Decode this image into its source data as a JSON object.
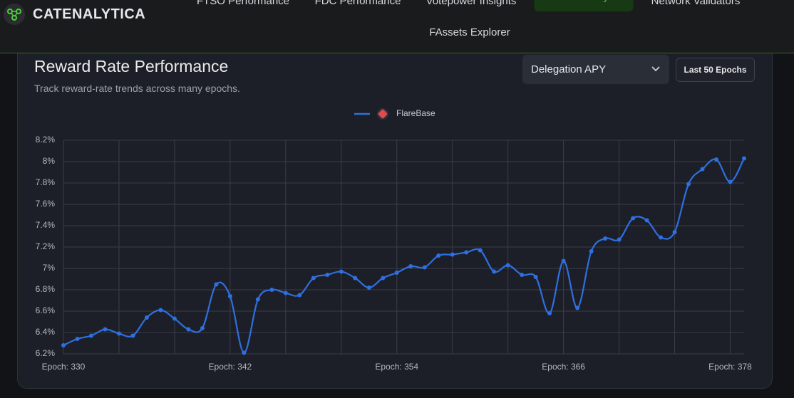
{
  "header": {
    "brand": "CATENALYTICA",
    "nav": [
      "FTSO Performance",
      "FDC Performance",
      "Votepower Insights",
      "Reward Analytics",
      "Network Validators",
      "FAssets Explorer"
    ],
    "active": "Reward Analytics"
  },
  "card": {
    "title": "Reward Rate Performance",
    "subtitle": "Track reward-rate trends across many epochs.",
    "metric": "Delegation APY",
    "range": "Last 50 Epochs"
  },
  "chart_data": {
    "type": "line",
    "x": [
      330,
      331,
      332,
      333,
      334,
      335,
      336,
      337,
      338,
      339,
      340,
      341,
      342,
      343,
      344,
      345,
      346,
      347,
      348,
      349,
      350,
      351,
      352,
      353,
      354,
      355,
      356,
      357,
      358,
      359,
      360,
      361,
      362,
      363,
      364,
      365,
      366,
      367,
      368,
      369,
      370,
      371,
      372,
      373,
      374,
      375,
      376,
      377,
      378,
      379
    ],
    "series": [
      {
        "name": "FlareBase",
        "color": "#2f6fe0",
        "values": [
          6.28,
          6.34,
          6.37,
          6.43,
          6.39,
          6.37,
          6.54,
          6.61,
          6.53,
          6.43,
          6.44,
          6.85,
          6.74,
          6.21,
          6.71,
          6.8,
          6.77,
          6.75,
          6.91,
          6.94,
          6.97,
          6.91,
          6.82,
          6.91,
          6.96,
          7.02,
          7.01,
          7.12,
          7.13,
          7.15,
          7.17,
          6.97,
          7.03,
          6.94,
          6.92,
          6.58,
          7.07,
          6.63,
          7.16,
          7.28,
          7.27,
          7.47,
          7.45,
          7.29,
          7.34,
          7.79,
          7.93,
          8.02,
          7.81,
          8.03
        ]
      }
    ],
    "xlim": [
      330,
      379
    ],
    "xticks": [
      {
        "value": 330,
        "label": "Epoch: 330"
      },
      {
        "value": 342,
        "label": "Epoch: 342"
      },
      {
        "value": 354,
        "label": "Epoch: 354"
      },
      {
        "value": 366,
        "label": "Epoch: 366"
      },
      {
        "value": 378,
        "label": "Epoch: 378"
      }
    ],
    "xgrid": [
      334,
      338,
      346,
      350,
      358,
      362,
      370,
      374
    ],
    "ylim": [
      6.2,
      8.2
    ],
    "yticks": [
      {
        "value": 6.2,
        "label": "6.2%"
      },
      {
        "value": 6.4,
        "label": "6.4%"
      },
      {
        "value": 6.6,
        "label": "6.6%"
      },
      {
        "value": 6.8,
        "label": "6.8%"
      },
      {
        "value": 7,
        "label": "7%"
      },
      {
        "value": 7.2,
        "label": "7.2%"
      },
      {
        "value": 7.4,
        "label": "7.4%"
      },
      {
        "value": 7.6,
        "label": "7.6%"
      },
      {
        "value": 7.8,
        "label": "7.8%"
      },
      {
        "value": 8,
        "label": "8%"
      },
      {
        "value": 8.2,
        "label": "8.2%"
      }
    ],
    "grid": true,
    "legend": "top"
  }
}
